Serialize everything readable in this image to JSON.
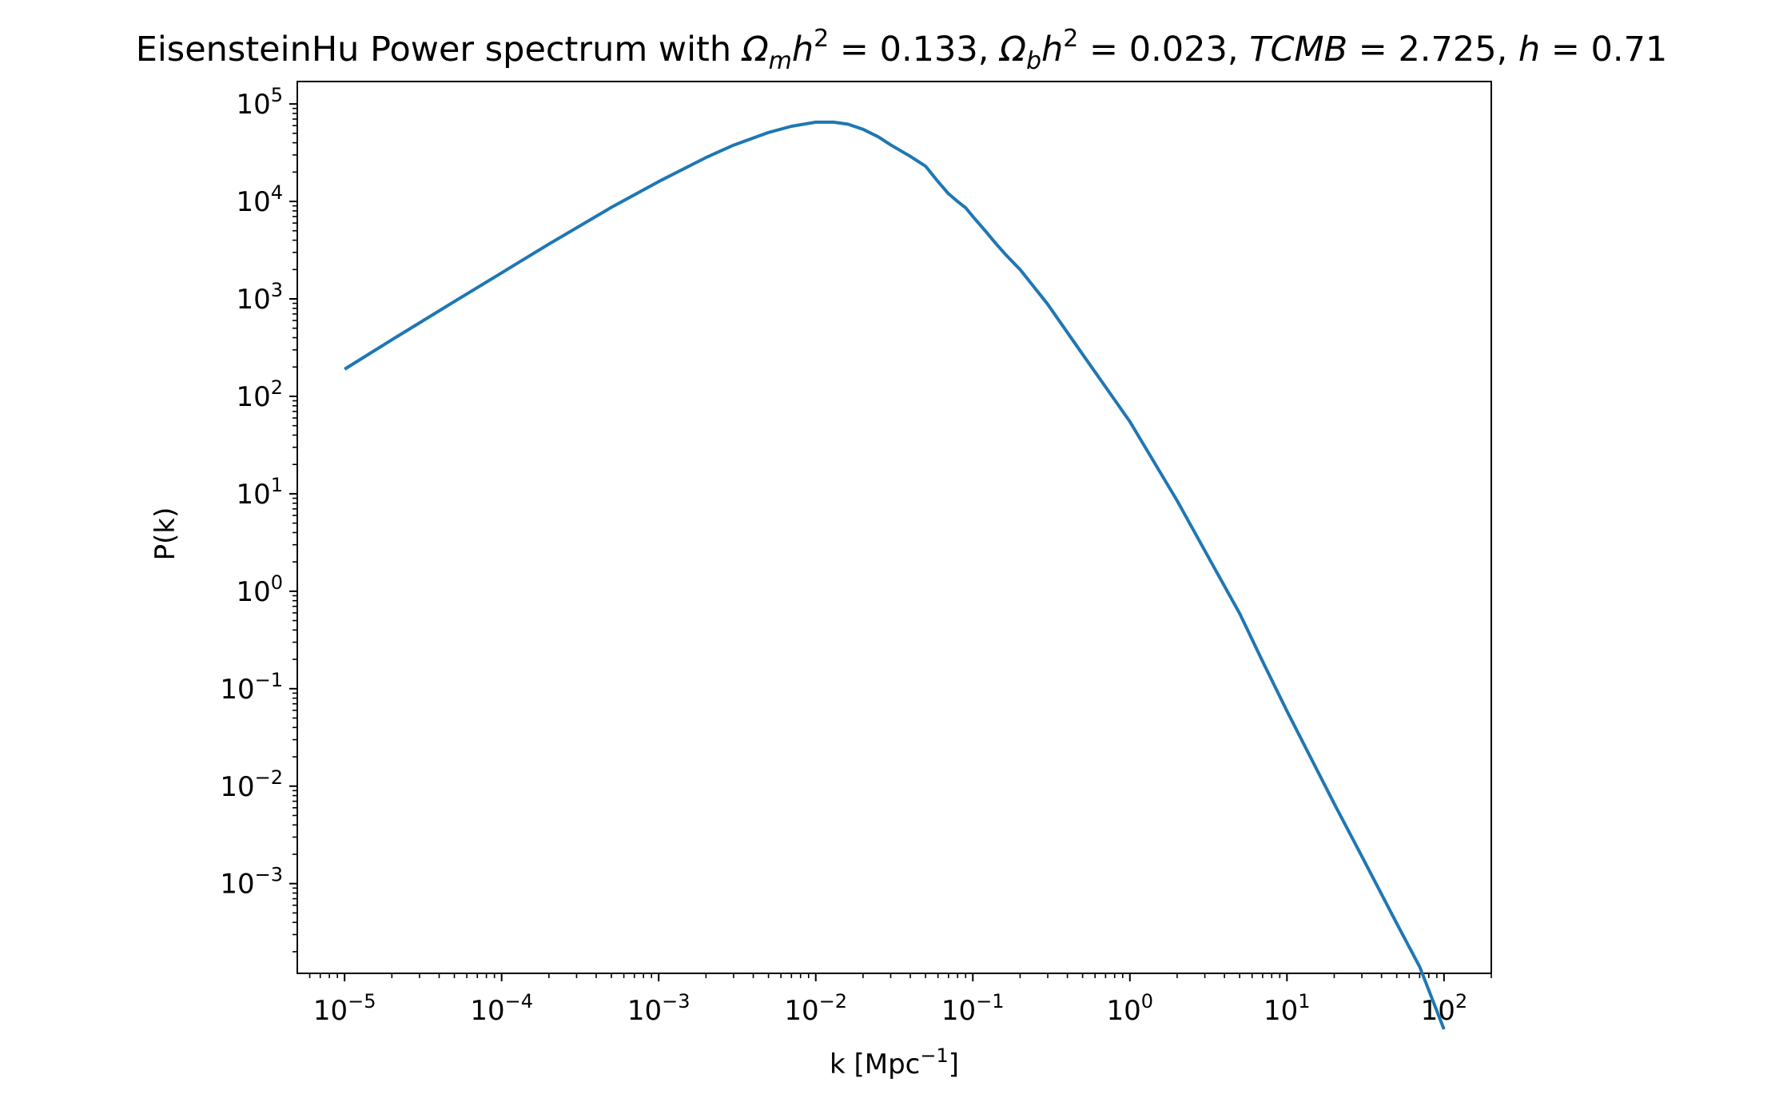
{
  "chart_data": {
    "type": "line",
    "title": "EisensteinHu Power spectrum with Ω_m h^2 = 0.133, Ω_b h^2 = 0.023, TCMB = 2.725, h = 0.71",
    "title_parts": {
      "prefix": "EisensteinHu Power spectrum with ",
      "omega": "Ω",
      "sub_m": "m",
      "sub_b": "b",
      "h": "h",
      "exp2": "2",
      "eq": " = ",
      "omega_m_value": "0.133",
      "omega_b_value": "0.023",
      "sep": ", ",
      "tcmb_label": "TCMB",
      "tcmb_value": "2.725",
      "h_value": "0.71"
    },
    "xlabel": "k [Mpc",
    "xlabel_exp": "−1",
    "xlabel_close": "]",
    "ylabel": "P(k)",
    "xscale": "log",
    "yscale": "log",
    "xlim": [
      5e-06,
      200
    ],
    "ylim": [
      0.00012,
      170000
    ],
    "x_ticks": [
      {
        "base": "10",
        "exp": "−5",
        "value": 1e-05
      },
      {
        "base": "10",
        "exp": "−4",
        "value": 0.0001
      },
      {
        "base": "10",
        "exp": "−3",
        "value": 0.001
      },
      {
        "base": "10",
        "exp": "−2",
        "value": 0.01
      },
      {
        "base": "10",
        "exp": "−1",
        "value": 0.1
      },
      {
        "base": "10",
        "exp": "0",
        "value": 1
      },
      {
        "base": "10",
        "exp": "1",
        "value": 10
      },
      {
        "base": "10",
        "exp": "2",
        "value": 100
      }
    ],
    "y_ticks": [
      {
        "base": "10",
        "exp": "5",
        "value": 100000.0
      },
      {
        "base": "10",
        "exp": "4",
        "value": 10000.0
      },
      {
        "base": "10",
        "exp": "3",
        "value": 1000.0
      },
      {
        "base": "10",
        "exp": "2",
        "value": 100.0
      },
      {
        "base": "10",
        "exp": "1",
        "value": 10
      },
      {
        "base": "10",
        "exp": "0",
        "value": 1
      },
      {
        "base": "10",
        "exp": "−1",
        "value": 0.1
      },
      {
        "base": "10",
        "exp": "−2",
        "value": 0.01
      },
      {
        "base": "10",
        "exp": "−3",
        "value": 0.001
      }
    ],
    "grid": false,
    "series": [
      {
        "color": "#1f77b4",
        "x": [
          1e-05,
          2e-05,
          5e-05,
          0.0001,
          0.0002,
          0.0005,
          0.001,
          0.002,
          0.003,
          0.005,
          0.007,
          0.01,
          0.013,
          0.016,
          0.02,
          0.025,
          0.03,
          0.04,
          0.05,
          0.06,
          0.07,
          0.08,
          0.09,
          0.1,
          0.12,
          0.14,
          0.16,
          0.2,
          0.3,
          0.5,
          0.7,
          1,
          2,
          3,
          5,
          7,
          10,
          20,
          30,
          50,
          70,
          100
        ],
        "y": [
          190,
          380,
          940,
          1850,
          3650,
          8700,
          16000,
          28200,
          37800,
          51000,
          59000,
          65000,
          65000,
          62000,
          55000,
          46000,
          38000,
          29000,
          23000,
          16000,
          12000,
          10000,
          8600,
          7000,
          5000,
          3700,
          2900,
          2000,
          880,
          270,
          125,
          55,
          8.5,
          2.6,
          0.59,
          0.19,
          0.059,
          0.0066,
          0.0019,
          0.00039,
          0.00014,
          3.2e-05
        ]
      }
    ]
  }
}
